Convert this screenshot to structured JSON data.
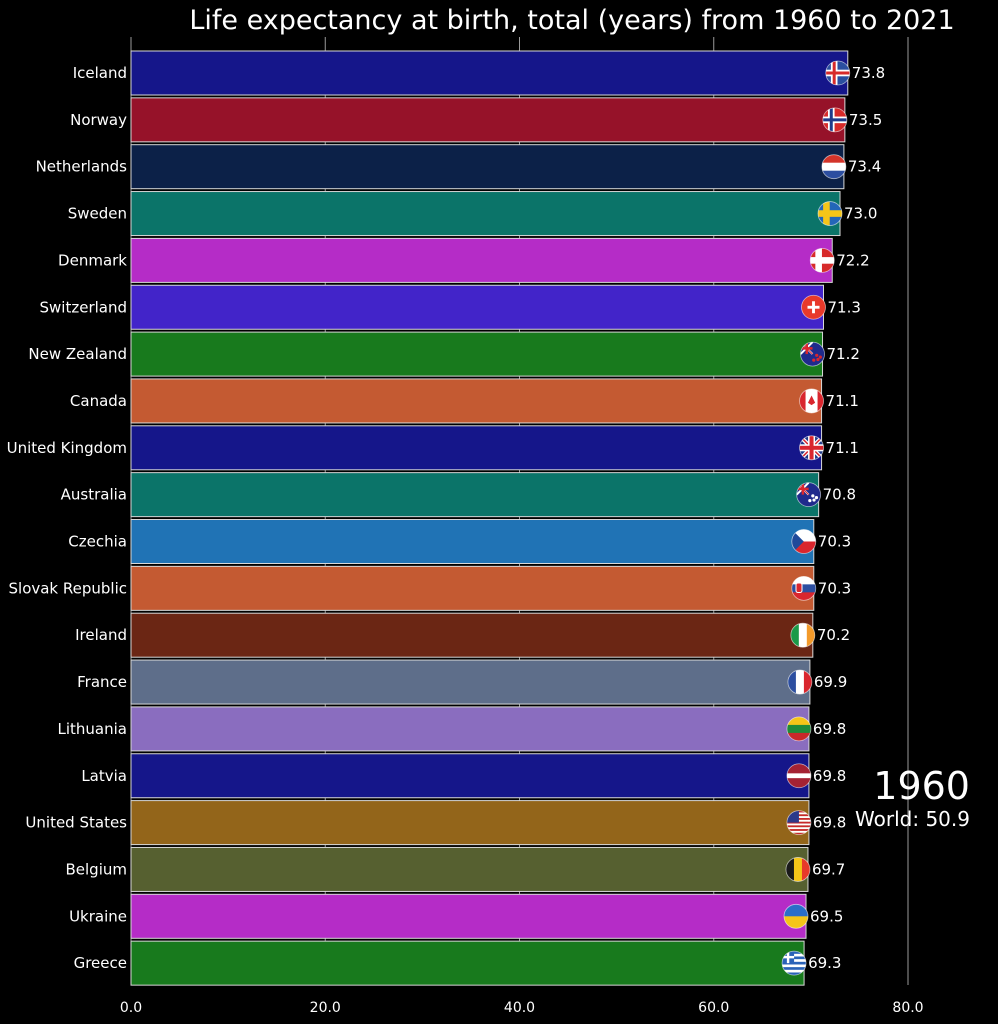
{
  "chart_data": {
    "type": "bar",
    "orientation": "horizontal",
    "title": "Life expectancy at birth, total (years) from 1960 to 2021",
    "year": "1960",
    "world": "World: 50.9",
    "xlim": [
      0,
      80
    ],
    "xticks": [
      "0.0",
      "20.0",
      "40.0",
      "60.0",
      "80.0"
    ],
    "grid": true,
    "categories": [
      "Iceland",
      "Norway",
      "Netherlands",
      "Sweden",
      "Denmark",
      "Switzerland",
      "New Zealand",
      "Canada",
      "United Kingdom",
      "Australia",
      "Czechia",
      "Slovak Republic",
      "Ireland",
      "France",
      "Lithuania",
      "Latvia",
      "United States",
      "Belgium",
      "Ukraine",
      "Greece"
    ],
    "values": [
      73.8,
      73.5,
      73.4,
      73.0,
      72.2,
      71.3,
      71.2,
      71.1,
      71.1,
      70.8,
      70.3,
      70.3,
      70.2,
      69.9,
      69.8,
      69.8,
      69.8,
      69.7,
      69.5,
      69.3
    ],
    "value_labels": [
      "73.8",
      "73.5",
      "73.4",
      "73.0",
      "72.2",
      "71.3",
      "71.2",
      "71.1",
      "71.1",
      "70.8",
      "70.3",
      "70.3",
      "70.2",
      "69.9",
      "69.8",
      "69.8",
      "69.8",
      "69.7",
      "69.5",
      "69.3"
    ],
    "colors": [
      "#15168a",
      "#961229",
      "#0c2148",
      "#0b7469",
      "#b52cc7",
      "#4224c9",
      "#187a1d",
      "#c45a32",
      "#15168a",
      "#0b7469",
      "#2073b5",
      "#c45a32",
      "#6b2614",
      "#5e6e8a",
      "#8a6dbf",
      "#15168a",
      "#93651a",
      "#566030",
      "#b52cc7",
      "#187a1d"
    ],
    "flags": [
      "iceland-flag-icon",
      "norway-flag-icon",
      "netherlands-flag-icon",
      "sweden-flag-icon",
      "denmark-flag-icon",
      "switzerland-flag-icon",
      "new-zealand-flag-icon",
      "canada-flag-icon",
      "united-kingdom-flag-icon",
      "australia-flag-icon",
      "czechia-flag-icon",
      "slovak-republic-flag-icon",
      "ireland-flag-icon",
      "france-flag-icon",
      "lithuania-flag-icon",
      "latvia-flag-icon",
      "united-states-flag-icon",
      "belgium-flag-icon",
      "ukraine-flag-icon",
      "greece-flag-icon"
    ]
  }
}
